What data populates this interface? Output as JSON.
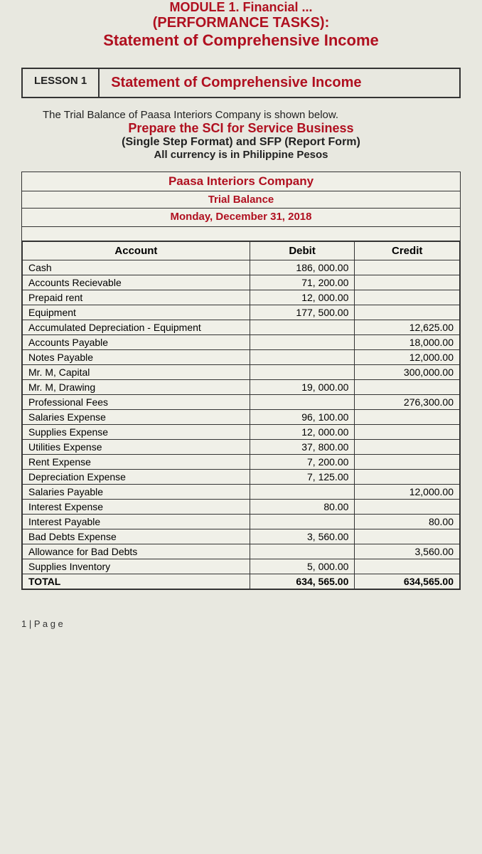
{
  "header": {
    "module_line": "MODULE 1. Financial ...",
    "perf_tasks": "(PERFORMANCE TASKS):",
    "statement_header": "Statement of Comprehensive Income"
  },
  "lesson": {
    "number": "LESSON 1",
    "title": "Statement of Comprehensive Income"
  },
  "intro": {
    "line1": "The Trial Balance of Paasa Interiors Company is shown below.",
    "line2": "Prepare the SCI for Service Business",
    "line3": "(Single Step Format) and SFP (Report Form)",
    "line4": "All currency is in Philippine Pesos"
  },
  "trial_balance": {
    "company": "Paasa Interiors Company",
    "title": "Trial Balance",
    "date": "Monday, December 31, 2018",
    "columns": [
      "Account",
      "Debit",
      "Credit"
    ],
    "rows": [
      {
        "account": "Cash",
        "debit": "186, 000.00",
        "credit": ""
      },
      {
        "account": "Accounts Recievable",
        "debit": "71, 200.00",
        "credit": ""
      },
      {
        "account": "Prepaid rent",
        "debit": "12, 000.00",
        "credit": ""
      },
      {
        "account": "Equipment",
        "debit": "177, 500.00",
        "credit": ""
      },
      {
        "account": "Accumulated Depreciation - Equipment",
        "debit": "",
        "credit": "12,625.00"
      },
      {
        "account": "Accounts Payable",
        "debit": "",
        "credit": "18,000.00"
      },
      {
        "account": "Notes Payable",
        "debit": "",
        "credit": "12,000.00"
      },
      {
        "account": "Mr. M, Capital",
        "debit": "",
        "credit": "300,000.00"
      },
      {
        "account": "Mr. M, Drawing",
        "debit": "19, 000.00",
        "credit": ""
      },
      {
        "account": "Professional Fees",
        "debit": "",
        "credit": "276,300.00"
      },
      {
        "account": "Salaries Expense",
        "debit": "96, 100.00",
        "credit": ""
      },
      {
        "account": "Supplies Expense",
        "debit": "12, 000.00",
        "credit": ""
      },
      {
        "account": "Utilities Expense",
        "debit": "37, 800.00",
        "credit": ""
      },
      {
        "account": "Rent Expense",
        "debit": "7, 200.00",
        "credit": ""
      },
      {
        "account": "Depreciation Expense",
        "debit": "7, 125.00",
        "credit": ""
      },
      {
        "account": "Salaries Payable",
        "debit": "",
        "credit": "12,000.00"
      },
      {
        "account": "Interest Expense",
        "debit": "80.00",
        "credit": ""
      },
      {
        "account": "Interest Payable",
        "debit": "",
        "credit": "80.00"
      },
      {
        "account": "Bad Debts Expense",
        "debit": "3, 560.00",
        "credit": ""
      },
      {
        "account": "Allowance for Bad Debts",
        "debit": "",
        "credit": "3,560.00"
      },
      {
        "account": "Supplies Inventory",
        "debit": "5, 000.00",
        "credit": ""
      }
    ],
    "total": {
      "account": "TOTAL",
      "debit": "634, 565.00",
      "credit": "634,565.00"
    }
  },
  "footer": {
    "page_num": "1 | P a g e"
  },
  "colors": {
    "accent": "#b01020",
    "border": "#333333",
    "bg": "#e8e8e0",
    "table_bg": "#f0f0e8"
  }
}
